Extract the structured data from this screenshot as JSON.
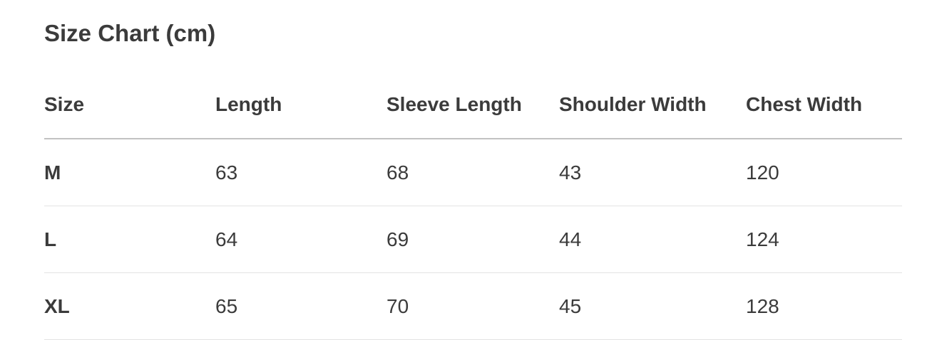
{
  "title": "Size Chart (cm)",
  "headers": [
    "Size",
    "Length",
    "Sleeve Length",
    "Shoulder Width",
    "Chest Width"
  ],
  "rows": [
    [
      "M",
      "63",
      "68",
      "43",
      "120"
    ],
    [
      "L",
      "64",
      "69",
      "44",
      "124"
    ],
    [
      "XL",
      "65",
      "70",
      "45",
      "128"
    ]
  ]
}
